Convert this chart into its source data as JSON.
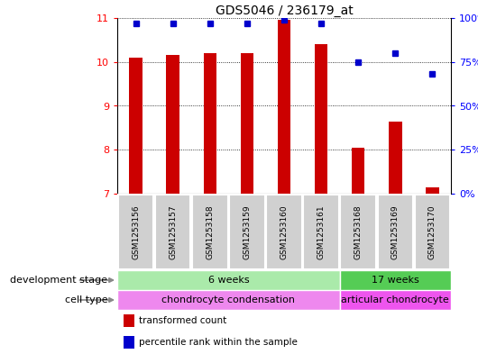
{
  "title": "GDS5046 / 236179_at",
  "samples": [
    "GSM1253156",
    "GSM1253157",
    "GSM1253158",
    "GSM1253159",
    "GSM1253160",
    "GSM1253161",
    "GSM1253168",
    "GSM1253169",
    "GSM1253170"
  ],
  "bar_values": [
    10.1,
    10.15,
    10.2,
    10.2,
    10.95,
    10.4,
    8.05,
    8.65,
    7.15
  ],
  "percentile_values": [
    97,
    97,
    97,
    97,
    99,
    97,
    75,
    80,
    68
  ],
  "ylim_left": [
    7,
    11
  ],
  "ylim_right": [
    0,
    100
  ],
  "yticks_left": [
    7,
    8,
    9,
    10,
    11
  ],
  "yticks_right": [
    0,
    25,
    50,
    75,
    100
  ],
  "bar_color": "#cc0000",
  "point_color": "#0000cc",
  "bar_width": 0.35,
  "dev_stage_groups": [
    {
      "label": "6 weeks",
      "start": 0,
      "end": 5,
      "color": "#aaeaaa"
    },
    {
      "label": "17 weeks",
      "start": 6,
      "end": 8,
      "color": "#55cc55"
    }
  ],
  "cell_type_groups": [
    {
      "label": "chondrocyte condensation",
      "start": 0,
      "end": 5,
      "color": "#ee88ee"
    },
    {
      "label": "articular chondrocyte",
      "start": 6,
      "end": 8,
      "color": "#ee55ee"
    }
  ],
  "dev_stage_label": "development stage",
  "cell_type_label": "cell type",
  "legend_bar_label": "transformed count",
  "legend_point_label": "percentile rank within the sample",
  "background_color": "#ffffff",
  "sample_box_color": "#d0d0d0"
}
